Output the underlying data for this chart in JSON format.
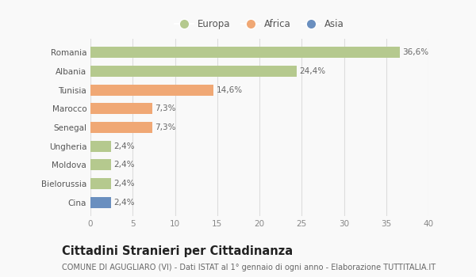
{
  "categories": [
    "Romania",
    "Albania",
    "Tunisia",
    "Marocco",
    "Senegal",
    "Ungheria",
    "Moldova",
    "Bielorussia",
    "Cina"
  ],
  "values": [
    36.6,
    24.4,
    14.6,
    7.3,
    7.3,
    2.4,
    2.4,
    2.4,
    2.4
  ],
  "labels": [
    "36,6%",
    "24,4%",
    "14,6%",
    "7,3%",
    "7,3%",
    "2,4%",
    "2,4%",
    "2,4%",
    "2,4%"
  ],
  "colors": [
    "#b5c98e",
    "#b5c98e",
    "#f0a875",
    "#f0a875",
    "#f0a875",
    "#b5c98e",
    "#b5c98e",
    "#b5c98e",
    "#6a8fbf"
  ],
  "legend_labels": [
    "Europa",
    "Africa",
    "Asia"
  ],
  "legend_colors": [
    "#b5c98e",
    "#f0a875",
    "#6a8fbf"
  ],
  "xlim": [
    0,
    40
  ],
  "xticks": [
    0,
    5,
    10,
    15,
    20,
    25,
    30,
    35,
    40
  ],
  "title": "Cittadini Stranieri per Cittadinanza",
  "subtitle": "COMUNE DI AGUGLIARO (VI) - Dati ISTAT al 1° gennaio di ogni anno - Elaborazione TUTTITALIA.IT",
  "background_color": "#f9f9f9",
  "grid_color": "#dddddd",
  "bar_height": 0.6,
  "label_fontsize": 7.5,
  "title_fontsize": 10.5,
  "subtitle_fontsize": 7.0,
  "ytick_fontsize": 7.5,
  "xtick_fontsize": 7.5,
  "legend_fontsize": 8.5
}
